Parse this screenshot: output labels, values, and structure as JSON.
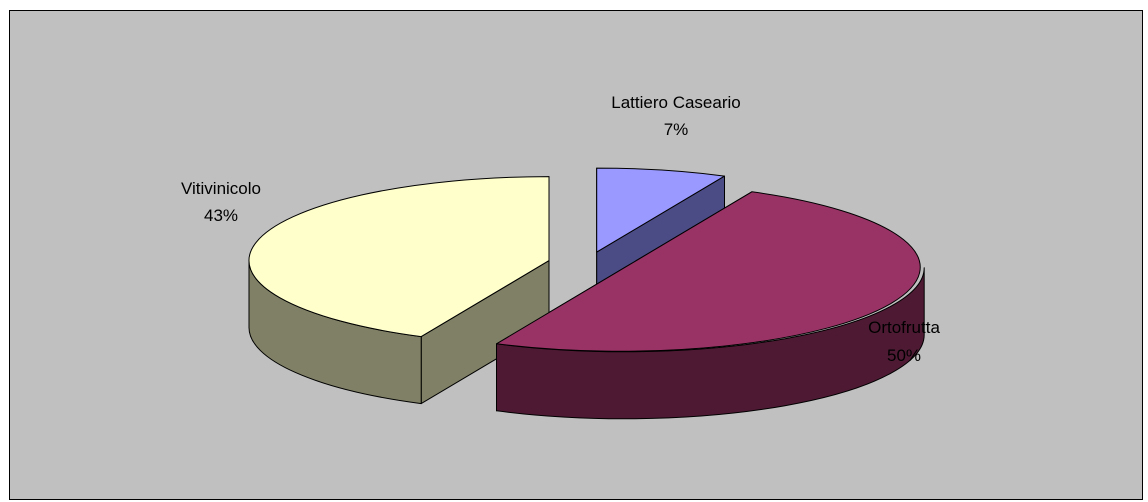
{
  "chart_data": {
    "type": "pie",
    "style": "3d-exploded",
    "title": "",
    "background": "#c0c0c0",
    "slices": [
      {
        "name": "Lattiero Caseario",
        "value": 7,
        "label": "7%",
        "top_color": "#9999ff",
        "side_color": "#4b4b86"
      },
      {
        "name": "Ortofrutta",
        "value": 50,
        "label": "50%",
        "top_color": "#993366",
        "side_color": "#4e1a33"
      },
      {
        "name": "Vitivinicolo",
        "value": 43,
        "label": "43%",
        "top_color": "#ffffcc",
        "side_color": "#808066"
      }
    ]
  }
}
